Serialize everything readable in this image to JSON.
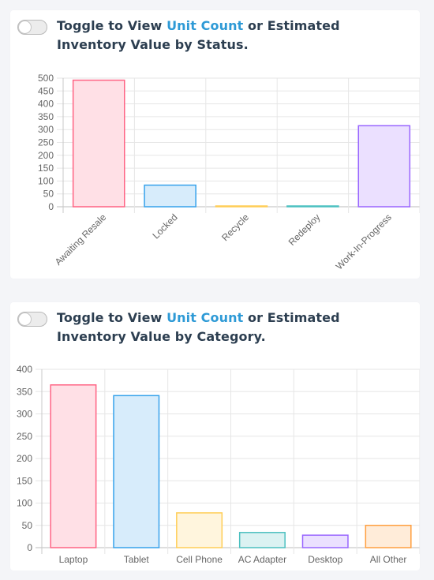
{
  "status_card": {
    "title_prefix": "Toggle to View ",
    "title_link": "Unit Count",
    "title_suffix": " or Estimated Inventory Value by Status."
  },
  "category_card": {
    "title_prefix": "Toggle to View ",
    "title_link": "Unit Count",
    "title_suffix": " or Estimated Inventory Value by Category."
  },
  "colors": {
    "link": "#2e9ad6",
    "title": "#2c3e50",
    "grid": "#e6e6e6",
    "tick": "#666666"
  },
  "chart_data": [
    {
      "type": "bar",
      "categories": [
        "Awaiting Resale",
        "Locked",
        "Recycle",
        "Redeploy",
        "Work-In-Progress"
      ],
      "values": [
        492,
        84,
        1,
        1,
        315
      ],
      "ylim": [
        0,
        500
      ],
      "yticks": [
        0,
        50,
        100,
        150,
        200,
        250,
        300,
        350,
        400,
        450,
        500
      ],
      "x_labels_rotated": true,
      "grid": true,
      "legend": "none",
      "bar_fills": [
        "#ffe0e6",
        "#d7ecfb",
        "#fff5dd",
        "#dbf2f2",
        "#ebe0ff"
      ],
      "bar_strokes": [
        "#ff6384",
        "#36a2eb",
        "#ffcd56",
        "#4bc0c0",
        "#9966ff"
      ]
    },
    {
      "type": "bar",
      "categories": [
        "Laptop",
        "Tablet",
        "Cell Phone",
        "AC Adapter",
        "Desktop",
        "All Other"
      ],
      "values": [
        365,
        341,
        78,
        34,
        28,
        50
      ],
      "ylim": [
        0,
        400
      ],
      "yticks": [
        0,
        50,
        100,
        150,
        200,
        250,
        300,
        350,
        400
      ],
      "x_labels_rotated": false,
      "grid": true,
      "legend": "none",
      "bar_fills": [
        "#ffe0e6",
        "#d7ecfb",
        "#fff5dd",
        "#dbf2f2",
        "#ebe0ff",
        "#ffecd9"
      ],
      "bar_strokes": [
        "#ff6384",
        "#36a2eb",
        "#ffcd56",
        "#4bc0c0",
        "#9966ff",
        "#ff9f40"
      ]
    }
  ]
}
